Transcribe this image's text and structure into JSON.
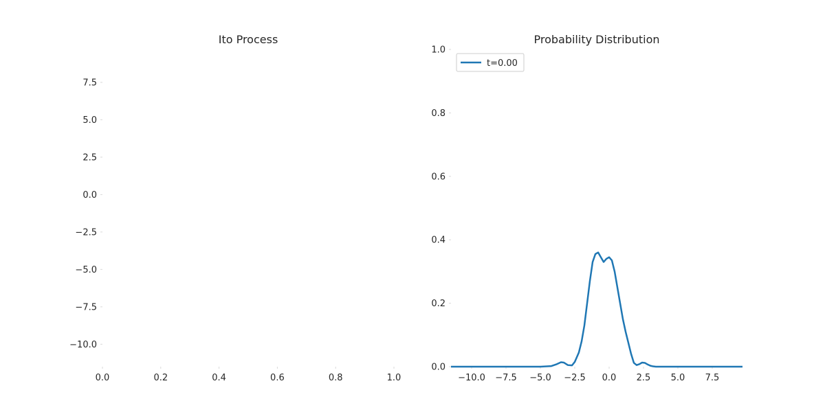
{
  "chart_data": [
    {
      "type": "line",
      "title": "Ito Process",
      "xlabel": "",
      "ylabel": "",
      "xlim": [
        0.0,
        1.0
      ],
      "ylim": [
        -11.5,
        9.7
      ],
      "xticks": [
        "0.0",
        "0.2",
        "0.4",
        "0.6",
        "0.8",
        "1.0"
      ],
      "yticks": [
        "−10.0",
        "−7.5",
        "−5.0",
        "−2.5",
        "0.0",
        "2.5",
        "5.0",
        "7.5"
      ],
      "grid": false,
      "series": []
    },
    {
      "type": "line",
      "title": "Probability Distribution",
      "xlabel": "",
      "ylabel": "",
      "xlim": [
        -11.5,
        9.7
      ],
      "ylim": [
        0.0,
        1.0
      ],
      "xticks": [
        "−10.0",
        "−7.5",
        "−5.0",
        "−2.5",
        "0.0",
        "2.5",
        "5.0",
        "7.5"
      ],
      "yticks": [
        "0.0",
        "0.2",
        "0.4",
        "0.6",
        "0.8",
        "1.0"
      ],
      "grid": false,
      "legend": "top-left",
      "series": [
        {
          "name": "t=0.00",
          "color": "#1f77b4",
          "x": [
            -11.5,
            -5.0,
            -4.2,
            -3.8,
            -3.5,
            -3.3,
            -3.0,
            -2.7,
            -2.5,
            -2.2,
            -2.0,
            -1.8,
            -1.6,
            -1.4,
            -1.2,
            -1.0,
            -0.8,
            -0.6,
            -0.4,
            -0.2,
            0.0,
            0.2,
            0.4,
            0.6,
            0.8,
            1.0,
            1.2,
            1.4,
            1.6,
            1.8,
            2.0,
            2.2,
            2.4,
            2.6,
            2.8,
            3.0,
            3.2,
            3.4,
            3.7,
            4.2,
            9.7
          ],
          "y": [
            0.0,
            0.0,
            0.002,
            0.008,
            0.014,
            0.013,
            0.005,
            0.004,
            0.015,
            0.045,
            0.08,
            0.13,
            0.2,
            0.27,
            0.33,
            0.355,
            0.36,
            0.345,
            0.33,
            0.34,
            0.345,
            0.335,
            0.3,
            0.25,
            0.2,
            0.15,
            0.11,
            0.075,
            0.04,
            0.012,
            0.005,
            0.008,
            0.013,
            0.012,
            0.007,
            0.003,
            0.001,
            0.0,
            0.0,
            0.0,
            0.0
          ]
        }
      ]
    }
  ]
}
